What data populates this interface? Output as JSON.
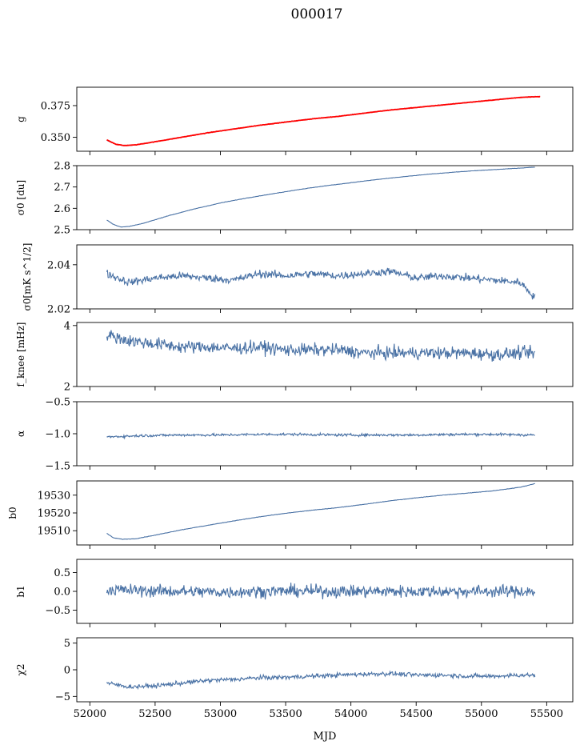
{
  "chart_data": {
    "title": "000017",
    "xlabel": "MJD",
    "type": "line",
    "x_range": [
      52130,
      55410
    ],
    "xlim": [
      51900,
      55700
    ],
    "xticks": [
      52000,
      52500,
      53000,
      53500,
      54000,
      54500,
      55000,
      55500
    ],
    "line_color": "#4a72a5",
    "overlay_color": "#ff0000",
    "panels": [
      {
        "ylabel": "g",
        "ylim": [
          0.339,
          0.3895
        ],
        "yticks": [
          0.35,
          0.375
        ],
        "yticklabels": [
          "0.350",
          "0.375"
        ],
        "series": [
          {
            "color": "#4a72a5",
            "x": [
              52130,
              52200,
              52260,
              52350,
              52500,
              52700,
              52900,
              53100,
              53300,
              53500,
              53700,
              53900,
              54100,
              54300,
              54500,
              54700,
              54900,
              55100,
              55300,
              55400
            ],
            "y": [
              0.3475,
              0.3445,
              0.3435,
              0.344,
              0.3465,
              0.35,
              0.3535,
              0.3565,
              0.3595,
              0.362,
              0.3645,
              0.3665,
              0.369,
              0.3715,
              0.3735,
              0.3755,
              0.3775,
              0.3795,
              0.3815,
              0.382
            ]
          },
          {
            "color": "#ff0000",
            "x": [
              52130,
              52200,
              52260,
              52350,
              52500,
              52700,
              52900,
              53100,
              53300,
              53500,
              53700,
              53900,
              54100,
              54300,
              54500,
              54700,
              54900,
              55100,
              55300,
              55400,
              55450
            ],
            "y": [
              0.348,
              0.3445,
              0.3435,
              0.344,
              0.3465,
              0.35,
              0.3535,
              0.3565,
              0.3595,
              0.362,
              0.3645,
              0.3665,
              0.369,
              0.3715,
              0.3735,
              0.3755,
              0.3775,
              0.3795,
              0.3815,
              0.382,
              0.382
            ]
          }
        ]
      },
      {
        "ylabel": "σ0 [du]",
        "ylim": [
          2.5,
          2.8
        ],
        "yticks": [
          2.5,
          2.6,
          2.7,
          2.8
        ],
        "yticklabels": [
          "2.5",
          "2.6",
          "2.7",
          "2.8"
        ],
        "series": [
          {
            "color": "#4a72a5",
            "x": [
              52130,
              52180,
              52240,
              52300,
              52400,
              52600,
              52800,
              53000,
              53200,
              53400,
              53600,
              53800,
              54000,
              54200,
              54400,
              54600,
              54800,
              55000,
              55200,
              55410
            ],
            "y": [
              2.545,
              2.525,
              2.512,
              2.515,
              2.528,
              2.565,
              2.597,
              2.625,
              2.648,
              2.668,
              2.688,
              2.705,
              2.72,
              2.735,
              2.748,
              2.76,
              2.77,
              2.778,
              2.785,
              2.793
            ]
          }
        ]
      },
      {
        "ylabel": "σ0[mK s^1/2]",
        "ylim": [
          2.02,
          2.049
        ],
        "yticks": [
          2.02,
          2.04
        ],
        "yticklabels": [
          "2.02",
          "2.04"
        ],
        "series": [
          {
            "color": "#4a72a5",
            "x": [
              52130,
              52300,
              52500,
              52700,
              52900,
              53100,
              53300,
              53500,
              53700,
              53900,
              54100,
              54300,
              54500,
              54700,
              54900,
              55100,
              55300,
              55410
            ],
            "y": [
              2.036,
              2.032,
              2.034,
              2.035,
              2.034,
              2.033,
              2.036,
              2.035,
              2.036,
              2.035,
              2.036,
              2.037,
              2.034,
              2.035,
              2.034,
              2.033,
              2.032,
              2.025
            ]
          }
        ]
      },
      {
        "ylabel": "f_knee [mHz]",
        "ylim": [
          2,
          4.1
        ],
        "yticks": [
          2,
          4
        ],
        "yticklabels": [
          "2",
          "4"
        ],
        "series": [
          {
            "color": "#4a72a5",
            "x": [
              52130,
              52300,
              52500,
              52700,
              52900,
              53100,
              53300,
              53500,
              53700,
              53900,
              54100,
              54300,
              54500,
              54700,
              54900,
              55100,
              55300,
              55410
            ],
            "y": [
              3.7,
              3.5,
              3.4,
              3.3,
              3.3,
              3.25,
              3.3,
              3.2,
              3.2,
              3.2,
              3.1,
              3.1,
              3.1,
              3.1,
              3.1,
              3.05,
              3.1,
              3.1
            ]
          }
        ]
      },
      {
        "ylabel": "α",
        "ylim": [
          -1.5,
          -0.5
        ],
        "yticks": [
          -1.5,
          -1.0,
          -0.5
        ],
        "yticklabels": [
          "−1.5",
          "−1.0",
          "−0.5"
        ],
        "series": [
          {
            "color": "#4a72a5",
            "x": [
              52130,
              52400,
              52700,
              53000,
              53300,
              53600,
              53900,
              54200,
              54500,
              54800,
              55100,
              55410
            ],
            "y": [
              -1.05,
              -1.03,
              -1.02,
              -1.02,
              -1.01,
              -1.01,
              -1.02,
              -1.02,
              -1.02,
              -1.01,
              -1.01,
              -1.02
            ]
          }
        ]
      },
      {
        "ylabel": "b0",
        "ylim": [
          19502,
          19538
        ],
        "yticks": [
          19510,
          19520,
          19530
        ],
        "yticklabels": [
          "19510",
          "19520",
          "19530"
        ],
        "series": [
          {
            "color": "#4a72a5",
            "x": [
              52130,
              52180,
              52250,
              52350,
              52500,
              52700,
              52900,
              53100,
              53300,
              53500,
              53700,
              53900,
              54100,
              54300,
              54500,
              54700,
              54900,
              55100,
              55300,
              55410
            ],
            "y": [
              19508.5,
              19506.0,
              19505.2,
              19505.5,
              19507.5,
              19510.5,
              19513.0,
              19515.5,
              19517.8,
              19519.8,
              19521.5,
              19523.0,
              19524.8,
              19526.8,
              19528.5,
              19530.0,
              19531.2,
              19532.5,
              19534.5,
              19536.5
            ]
          }
        ]
      },
      {
        "ylabel": "b1",
        "ylim": [
          -0.85,
          0.85
        ],
        "yticks": [
          -0.5,
          0.0,
          0.5
        ],
        "yticklabels": [
          "−0.5",
          "0.0",
          "0.5"
        ],
        "series": [
          {
            "color": "#4a72a5",
            "x": [
              52130,
              52400,
              52700,
              53000,
              53300,
              53600,
              53900,
              54200,
              54500,
              54800,
              55100,
              55410
            ],
            "y": [
              0.05,
              0.02,
              0.0,
              -0.02,
              0.0,
              0.01,
              0.0,
              0.0,
              0.0,
              0.0,
              0.0,
              0.0
            ]
          }
        ]
      },
      {
        "ylabel": "χ2",
        "ylim": [
          -6,
          6
        ],
        "yticks": [
          -5,
          0,
          5
        ],
        "yticklabels": [
          "−5",
          "0",
          "5"
        ],
        "series": [
          {
            "color": "#4a72a5",
            "x": [
              52130,
              52300,
              52500,
              52700,
              52900,
              53100,
              53300,
              53500,
              53700,
              53900,
              54100,
              54300,
              54500,
              54700,
              54900,
              55100,
              55300,
              55410
            ],
            "y": [
              -2.5,
              -3.2,
              -3.0,
              -2.5,
              -2.0,
              -1.8,
              -1.5,
              -1.4,
              -1.2,
              -1.0,
              -0.8,
              -0.7,
              -1.0,
              -1.0,
              -1.2,
              -1.2,
              -1.0,
              -1.0
            ]
          }
        ]
      }
    ]
  }
}
